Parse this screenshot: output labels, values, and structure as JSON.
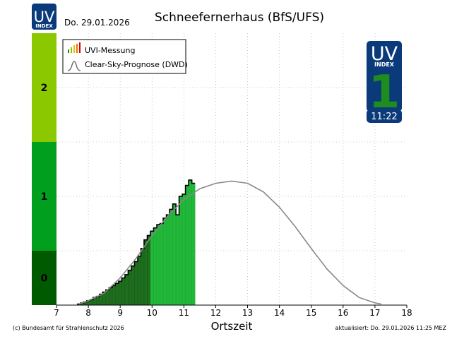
{
  "header": {
    "logo_top": "UV",
    "logo_bottom": "INDEX",
    "date": "Do. 29.01.2026",
    "title": "Schneefernerhaus (BfS/UFS)"
  },
  "badge": {
    "top": "UV",
    "sub": "INDEX",
    "value": "1",
    "time": "11:22",
    "color": "#0a3a7a",
    "value_color": "#1e8c1e"
  },
  "legend": {
    "measurement": "UVI-Messung",
    "forecast": "Clear-Sky-Prognose (DWD)"
  },
  "footer": {
    "copyright": "(c) Bundesamt für Strahlenschutz 2026",
    "updated": "aktualisiert: Do. 29.01.2026  11:25  MEZ"
  },
  "colors": {
    "band_low": "#005a00",
    "band_mid": "#00a01e",
    "band_high": "#8cc800",
    "bar_early": "#1e6e1e",
    "bar_late": "#22b83a",
    "forecast_line": "#888888"
  },
  "chart_data": {
    "type": "bar",
    "xlabel": "Ortszeit",
    "ylabel": "",
    "xlim": [
      7,
      18
    ],
    "ylim": [
      0,
      2.5
    ],
    "x_ticks": [
      "7",
      "8",
      "9",
      "10",
      "11",
      "12",
      "13",
      "14",
      "15",
      "16",
      "17",
      "18"
    ],
    "uvi_bands": [
      {
        "label": "0",
        "from": 0,
        "to": 0.5
      },
      {
        "label": "1",
        "from": 0.5,
        "to": 1.5
      },
      {
        "label": "2",
        "from": 1.5,
        "to": 2.5
      }
    ],
    "series": [
      {
        "name": "UVI-Messung",
        "x": [
          7.7,
          7.8,
          7.9,
          8.0,
          8.1,
          8.2,
          8.3,
          8.4,
          8.5,
          8.6,
          8.7,
          8.8,
          8.9,
          9.0,
          9.1,
          9.2,
          9.3,
          9.4,
          9.5,
          9.6,
          9.7,
          9.8,
          9.9,
          10.0,
          10.1,
          10.2,
          10.3,
          10.4,
          10.5,
          10.6,
          10.7,
          10.8,
          10.9,
          11.0,
          11.1,
          11.2,
          11.3
        ],
        "values": [
          0.01,
          0.02,
          0.03,
          0.04,
          0.05,
          0.07,
          0.08,
          0.1,
          0.12,
          0.14,
          0.16,
          0.18,
          0.2,
          0.22,
          0.25,
          0.28,
          0.32,
          0.36,
          0.4,
          0.45,
          0.52,
          0.6,
          0.64,
          0.68,
          0.71,
          0.74,
          0.75,
          0.8,
          0.83,
          0.88,
          0.93,
          0.83,
          1.0,
          1.02,
          1.1,
          1.15,
          1.12
        ]
      },
      {
        "name": "Clear-Sky-Prognose (DWD)",
        "x": [
          7.7,
          8.0,
          8.5,
          9.0,
          9.5,
          10.0,
          10.5,
          11.0,
          11.5,
          12.0,
          12.5,
          13.0,
          13.5,
          14.0,
          14.5,
          15.0,
          15.5,
          16.0,
          16.5,
          17.0,
          17.2
        ],
        "values": [
          0.01,
          0.04,
          0.11,
          0.25,
          0.43,
          0.64,
          0.82,
          0.97,
          1.07,
          1.12,
          1.14,
          1.12,
          1.04,
          0.9,
          0.72,
          0.52,
          0.33,
          0.18,
          0.07,
          0.02,
          0.01
        ]
      }
    ]
  }
}
